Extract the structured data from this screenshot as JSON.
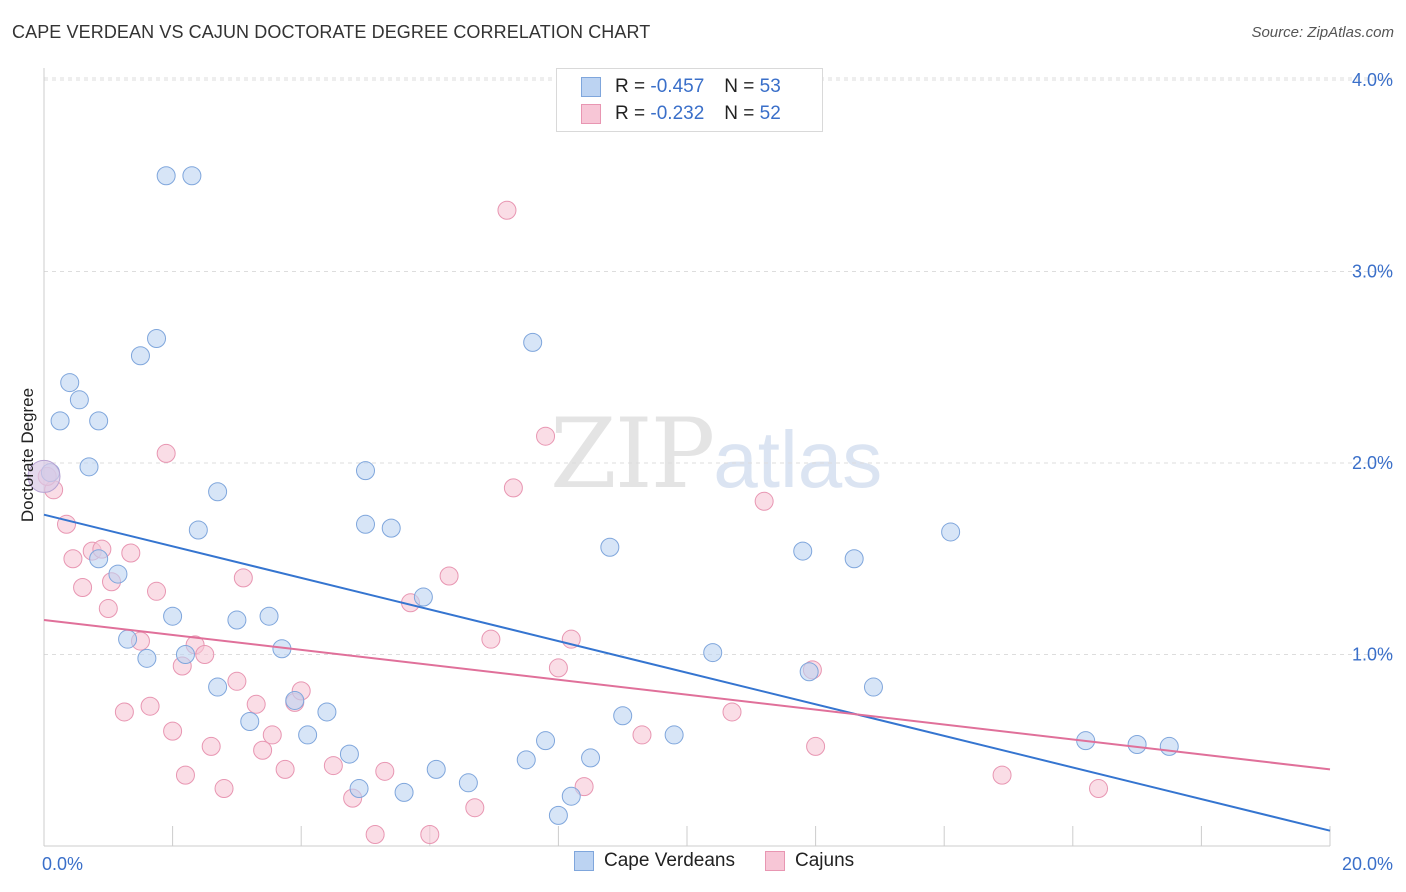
{
  "header": {
    "title": "CAPE VERDEAN VS CAJUN DOCTORATE DEGREE CORRELATION CHART",
    "source": "Source: ZipAtlas.com"
  },
  "watermark": {
    "zip": "ZIP",
    "atlas": "atlas"
  },
  "legend": {
    "rows": [
      {
        "r_label": "R =",
        "r_value": "-0.457",
        "n_label": "N =",
        "n_value": "53"
      },
      {
        "r_label": "R =",
        "r_value": "-0.232",
        "n_label": "N =",
        "n_value": "52"
      }
    ]
  },
  "colors": {
    "blue_fill": "#bcd3f2",
    "blue_stroke": "#7fa6dc",
    "blue_line": "#3575d0",
    "pink_fill": "#f7c6d6",
    "pink_stroke": "#e896b2",
    "pink_line": "#e0709a",
    "tick_text": "#3a6fc9",
    "grid": "#dddddd"
  },
  "chart_data": {
    "type": "scatter",
    "title": "CAPE VERDEAN VS CAJUN DOCTORATE DEGREE CORRELATION CHART",
    "xlabel": "",
    "ylabel": "Doctorate Degree",
    "xlim": [
      0,
      20
    ],
    "ylim": [
      0,
      4.1
    ],
    "x_tick_labels": [
      {
        "value": 0,
        "label": "0.0%"
      },
      {
        "value": 20,
        "label": "20.0%"
      }
    ],
    "y_tick_labels": [
      {
        "value": 1,
        "label": "1.0%"
      },
      {
        "value": 2,
        "label": "2.0%"
      },
      {
        "value": 3,
        "label": "3.0%"
      },
      {
        "value": 4,
        "label": "4.0%"
      }
    ],
    "grid": true,
    "legend_position": "bottom",
    "series": [
      {
        "name": "Cape Verdeans",
        "points": [
          [
            0.1,
            1.95
          ],
          [
            0.25,
            2.22
          ],
          [
            0.4,
            2.42
          ],
          [
            0.55,
            2.33
          ],
          [
            0.7,
            1.98
          ],
          [
            0.85,
            2.22
          ],
          [
            0.85,
            1.5
          ],
          [
            1.15,
            1.42
          ],
          [
            1.3,
            1.08
          ],
          [
            1.5,
            2.56
          ],
          [
            1.6,
            0.98
          ],
          [
            1.75,
            2.65
          ],
          [
            1.9,
            3.5
          ],
          [
            2.0,
            1.2
          ],
          [
            2.2,
            1.0
          ],
          [
            2.3,
            3.5
          ],
          [
            2.4,
            1.65
          ],
          [
            2.7,
            0.83
          ],
          [
            2.7,
            1.85
          ],
          [
            3.0,
            1.18
          ],
          [
            3.2,
            0.65
          ],
          [
            3.5,
            1.2
          ],
          [
            3.7,
            1.03
          ],
          [
            3.9,
            0.76
          ],
          [
            4.1,
            0.58
          ],
          [
            4.4,
            0.7
          ],
          [
            4.75,
            0.48
          ],
          [
            4.9,
            0.3
          ],
          [
            5.0,
            1.96
          ],
          [
            5.0,
            1.68
          ],
          [
            5.4,
            1.66
          ],
          [
            5.6,
            0.28
          ],
          [
            5.9,
            1.3
          ],
          [
            6.1,
            0.4
          ],
          [
            6.6,
            0.33
          ],
          [
            7.5,
            0.45
          ],
          [
            7.6,
            2.63
          ],
          [
            7.8,
            0.55
          ],
          [
            8.0,
            0.16
          ],
          [
            8.2,
            0.26
          ],
          [
            8.5,
            0.46
          ],
          [
            8.8,
            1.56
          ],
          [
            9.0,
            0.68
          ],
          [
            9.8,
            0.58
          ],
          [
            10.4,
            1.01
          ],
          [
            11.8,
            1.54
          ],
          [
            11.9,
            0.91
          ],
          [
            12.6,
            1.5
          ],
          [
            12.9,
            0.83
          ],
          [
            14.1,
            1.64
          ],
          [
            16.2,
            0.55
          ],
          [
            17.0,
            0.53
          ],
          [
            17.5,
            0.52
          ]
        ],
        "trend": {
          "x": [
            0,
            20
          ],
          "y": [
            1.73,
            0.08
          ]
        }
      },
      {
        "name": "Cajuns",
        "points": [
          [
            0.15,
            1.86
          ],
          [
            0.35,
            1.68
          ],
          [
            0.45,
            1.5
          ],
          [
            0.6,
            1.35
          ],
          [
            0.75,
            1.54
          ],
          [
            0.9,
            1.55
          ],
          [
            1.0,
            1.24
          ],
          [
            1.05,
            1.38
          ],
          [
            1.25,
            0.7
          ],
          [
            1.35,
            1.53
          ],
          [
            1.5,
            1.07
          ],
          [
            1.65,
            0.73
          ],
          [
            1.75,
            1.33
          ],
          [
            1.9,
            2.05
          ],
          [
            2.0,
            0.6
          ],
          [
            2.15,
            0.94
          ],
          [
            2.2,
            0.37
          ],
          [
            2.35,
            1.05
          ],
          [
            2.5,
            1.0
          ],
          [
            2.6,
            0.52
          ],
          [
            2.8,
            0.3
          ],
          [
            3.0,
            0.86
          ],
          [
            3.1,
            1.4
          ],
          [
            3.3,
            0.74
          ],
          [
            3.4,
            0.5
          ],
          [
            3.55,
            0.58
          ],
          [
            3.75,
            0.4
          ],
          [
            3.9,
            0.75
          ],
          [
            4.0,
            0.81
          ],
          [
            4.5,
            0.42
          ],
          [
            4.8,
            0.25
          ],
          [
            5.15,
            0.06
          ],
          [
            5.3,
            0.39
          ],
          [
            5.7,
            1.27
          ],
          [
            6.0,
            0.06
          ],
          [
            6.3,
            1.41
          ],
          [
            6.7,
            0.2
          ],
          [
            6.95,
            1.08
          ],
          [
            7.2,
            3.32
          ],
          [
            7.3,
            1.87
          ],
          [
            7.8,
            2.14
          ],
          [
            8.0,
            0.93
          ],
          [
            8.2,
            1.08
          ],
          [
            8.4,
            0.31
          ],
          [
            9.3,
            0.58
          ],
          [
            10.7,
            0.7
          ],
          [
            11.2,
            1.8
          ],
          [
            11.95,
            0.92
          ],
          [
            12.0,
            0.52
          ],
          [
            14.9,
            0.37
          ],
          [
            16.4,
            0.3
          ],
          [
            0.05,
            1.93
          ]
        ],
        "trend": {
          "x": [
            0,
            20
          ],
          "y": [
            1.18,
            0.4
          ]
        }
      }
    ]
  }
}
